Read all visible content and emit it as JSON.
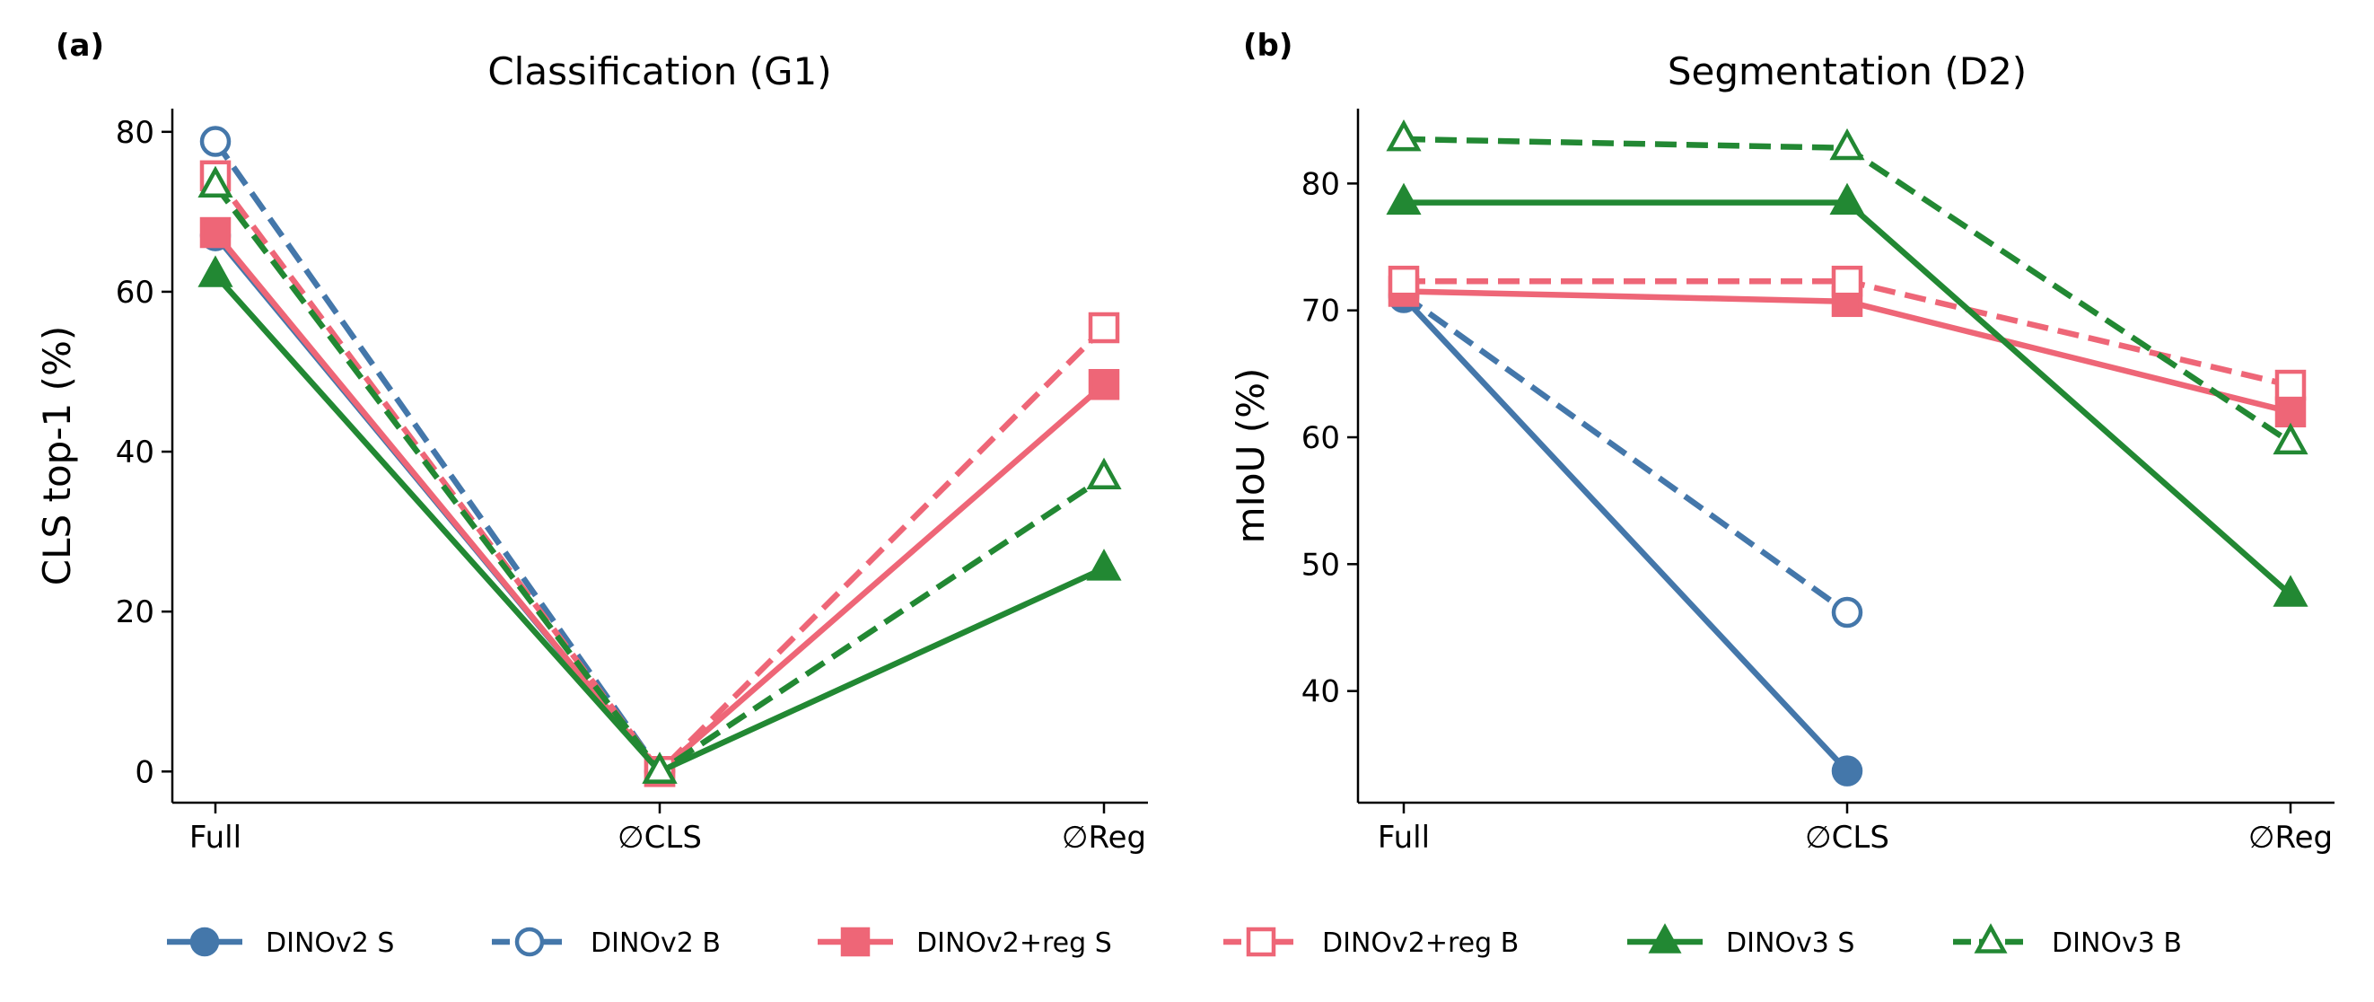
{
  "colors": {
    "DINOv2": "#4477AA",
    "DINOv2+reg": "#EE6677",
    "DINOv3": "#228833"
  },
  "legend": {
    "placement": "bottom"
  },
  "chart_data": [
    {
      "type": "line",
      "panel_label": "(a)",
      "title": "Classification (G1)",
      "ylabel": "CLS top-1 (%)",
      "categories": [
        "Full",
        "∅CLS",
        "∅Reg"
      ],
      "ylim": [
        -3.9,
        82.9
      ],
      "yticks": [
        0,
        20,
        40,
        60,
        80
      ],
      "grid": false,
      "series": [
        {
          "name": "DINOv2 S",
          "color": "#4477AA",
          "dash": false,
          "marker": "circle",
          "filled": true,
          "values": [
            67.0,
            0.0,
            null
          ]
        },
        {
          "name": "DINOv2 B",
          "color": "#4477AA",
          "dash": true,
          "marker": "circle",
          "filled": false,
          "values": [
            78.8,
            0.0,
            null
          ]
        },
        {
          "name": "DINOv2+reg S",
          "color": "#EE6677",
          "dash": false,
          "marker": "square",
          "filled": true,
          "values": [
            67.4,
            0.0,
            48.4
          ]
        },
        {
          "name": "DINOv2+reg B",
          "color": "#EE6677",
          "dash": true,
          "marker": "square",
          "filled": false,
          "values": [
            74.5,
            0.0,
            55.5
          ]
        },
        {
          "name": "DINOv3 S",
          "color": "#228833",
          "dash": false,
          "marker": "triangle",
          "filled": true,
          "values": [
            62.1,
            0.0,
            25.4
          ]
        },
        {
          "name": "DINOv3 B",
          "color": "#228833",
          "dash": true,
          "marker": "triangle",
          "filled": false,
          "values": [
            73.3,
            0.0,
            36.8
          ]
        }
      ]
    },
    {
      "type": "line",
      "panel_label": "(b)",
      "title": "Segmentation (D2)",
      "ylabel": "mIoU (%)",
      "categories": [
        "Full",
        "∅CLS",
        "∅Reg"
      ],
      "ylim": [
        31.2,
        85.9
      ],
      "yticks": [
        40,
        50,
        60,
        70,
        80
      ],
      "grid": false,
      "series": [
        {
          "name": "DINOv2 S",
          "color": "#4477AA",
          "dash": false,
          "marker": "circle",
          "filled": true,
          "values": [
            71.0,
            33.7,
            null
          ]
        },
        {
          "name": "DINOv2 B",
          "color": "#4477AA",
          "dash": true,
          "marker": "circle",
          "filled": false,
          "values": [
            71.2,
            46.2,
            null
          ]
        },
        {
          "name": "DINOv2+reg S",
          "color": "#EE6677",
          "dash": false,
          "marker": "square",
          "filled": true,
          "values": [
            71.5,
            70.7,
            62.0
          ]
        },
        {
          "name": "DINOv2+reg B",
          "color": "#EE6677",
          "dash": true,
          "marker": "square",
          "filled": false,
          "values": [
            72.3,
            72.3,
            64.1
          ]
        },
        {
          "name": "DINOv3 S",
          "color": "#228833",
          "dash": false,
          "marker": "triangle",
          "filled": true,
          "values": [
            78.5,
            78.5,
            47.6
          ]
        },
        {
          "name": "DINOv3 B",
          "color": "#228833",
          "dash": true,
          "marker": "triangle",
          "filled": false,
          "values": [
            83.5,
            82.8,
            59.6
          ]
        }
      ]
    }
  ]
}
